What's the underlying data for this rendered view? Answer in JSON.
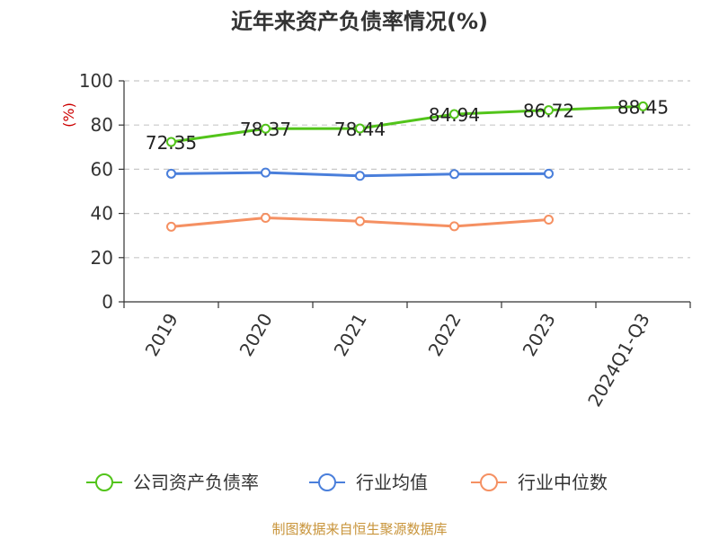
{
  "colors": {
    "company": "#52C41A",
    "industry_avg": "#4A7FDB",
    "industry_median": "#F59062",
    "ylabel": "#CC0000",
    "source": "#C8943A",
    "grid": "#C8C8C8",
    "axis": "#333333"
  },
  "chart_data": {
    "type": "line",
    "title": "近年来资产负债率情况(%)",
    "ylabel": "(%)",
    "xlabel": "",
    "ylim": [
      0,
      100
    ],
    "yticks": [
      0,
      20,
      40,
      60,
      80,
      100
    ],
    "grid": "horizontal dashed",
    "legend_position": "bottom",
    "categories": [
      "2019",
      "2020",
      "2021",
      "2022",
      "2023",
      "2024Q1-Q3"
    ],
    "series": [
      {
        "name": "公司资产负债率",
        "color_key": "company",
        "show_labels": true,
        "values": [
          72.35,
          78.37,
          78.44,
          84.94,
          86.72,
          88.45
        ]
      },
      {
        "name": "行业均值",
        "color_key": "industry_avg",
        "show_labels": false,
        "values": [
          58.0,
          58.5,
          57.0,
          57.8,
          58.0,
          null
        ]
      },
      {
        "name": "行业中位数",
        "color_key": "industry_median",
        "show_labels": false,
        "values": [
          34.0,
          38.0,
          36.5,
          34.2,
          37.2,
          null
        ]
      }
    ]
  },
  "source_note": "制图数据来自恒生聚源数据库"
}
